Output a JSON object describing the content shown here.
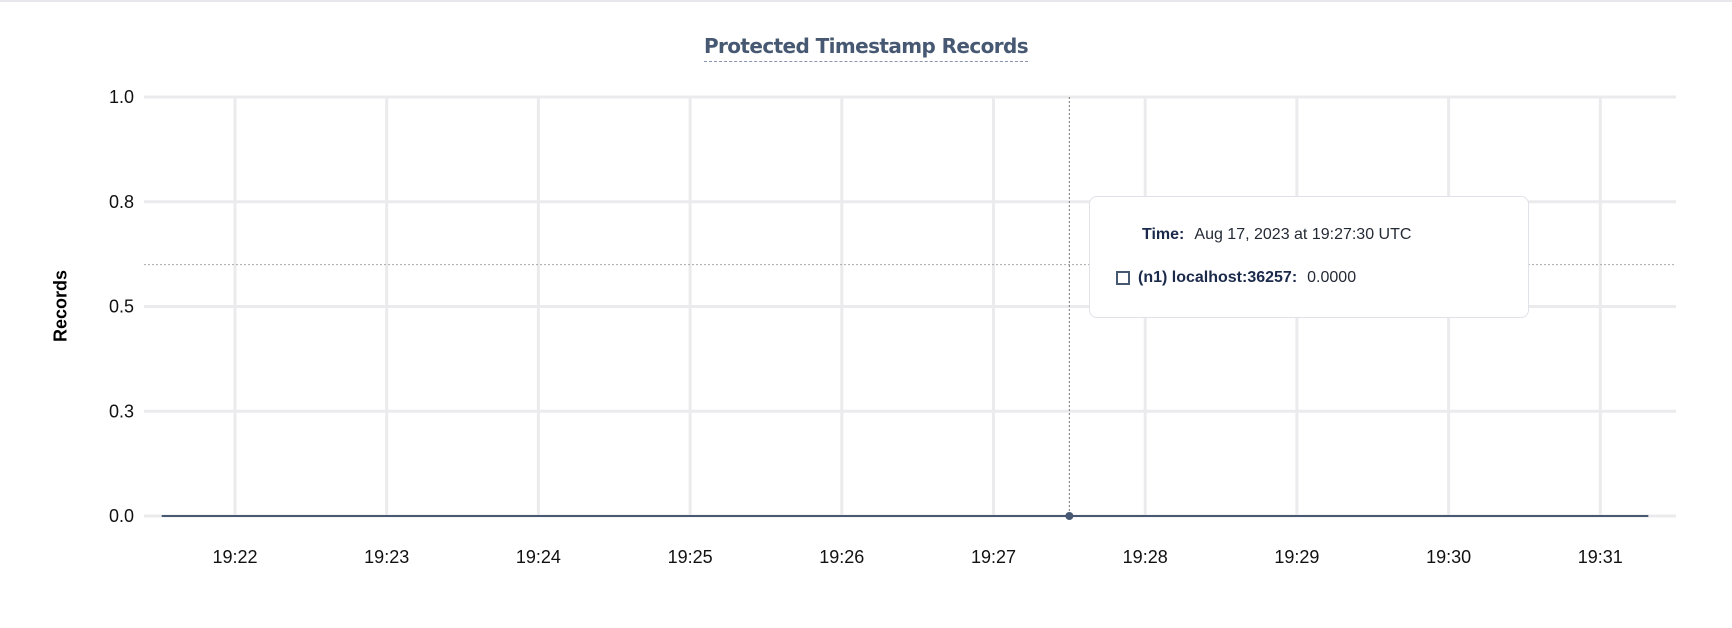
{
  "chart_data": {
    "type": "line",
    "title": "Protected Timestamp Records",
    "ylabel": "Records",
    "xlabel": "",
    "ylim": [
      0,
      1
    ],
    "y_ticks": [
      "1.0",
      "0.8",
      "0.5",
      "0.3",
      "0.0"
    ],
    "y_tick_values": [
      1.0,
      0.75,
      0.5,
      0.25,
      0.0
    ],
    "x_ticks": [
      "19:22",
      "19:23",
      "19:24",
      "19:25",
      "19:26",
      "19:27",
      "19:28",
      "19:29",
      "19:30",
      "19:31"
    ],
    "x_range": [
      "19:21:31",
      "19:31:19"
    ],
    "grid": true,
    "series": [
      {
        "name": "(n1) localhost:36257",
        "color": "#475872",
        "x": [
          "19:21:31",
          "19:31:19"
        ],
        "y": [
          0,
          0
        ]
      }
    ],
    "hover": {
      "time": "19:27:30",
      "y_cursor": 0.6
    }
  },
  "tooltip": {
    "time_label": "Time:",
    "time_value": "Aug 17, 2023 at 19:27:30 UTC",
    "series_label": "(n1) localhost:36257:",
    "series_value": "0.0000"
  }
}
